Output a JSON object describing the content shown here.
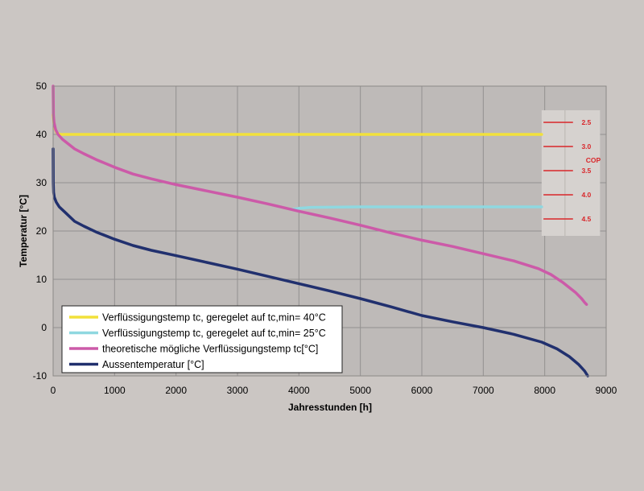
{
  "chart_data": {
    "type": "line",
    "xlabel": "Jahresstunden [h]",
    "ylabel": "Temperatur [°C]",
    "xlim": [
      0,
      9000
    ],
    "ylim": [
      -10,
      50
    ],
    "x_ticks": [
      0,
      1000,
      2000,
      3000,
      4000,
      5000,
      6000,
      7000,
      8000,
      9000
    ],
    "y_ticks": [
      -10,
      0,
      10,
      20,
      30,
      40,
      50
    ],
    "grid": true,
    "legend_position": "bottom-left",
    "series": [
      {
        "name": "Verflüssigungstemp tc, geregelet auf tc,min= 40°C",
        "color": "#f2e13a",
        "x": [
          0,
          20,
          60,
          120,
          300,
          1000,
          2000,
          4000,
          6000,
          7950
        ],
        "y": [
          44,
          41.5,
          40.3,
          40,
          40,
          40,
          40,
          40,
          40,
          40
        ]
      },
      {
        "name": "Verflüssigungstemp tc, geregelet auf tc,min= 25°C",
        "color": "#8fd8e0",
        "x": [
          3900,
          4000,
          4200,
          5000,
          6000,
          7000,
          7950
        ],
        "y": [
          24.5,
          24.7,
          24.9,
          25,
          25,
          25,
          25
        ]
      },
      {
        "name": "theoretische mögliche Verflüssigungstemp tc[°C]",
        "color": "#cc5aa8",
        "x": [
          0,
          5,
          15,
          40,
          80,
          150,
          250,
          350,
          500,
          700,
          1000,
          1300,
          1600,
          2000,
          2500,
          3000,
          3500,
          4000,
          4500,
          5000,
          5500,
          6000,
          6500,
          7000,
          7500,
          7900,
          8100,
          8300,
          8500,
          8600,
          8650,
          8680
        ],
        "y": [
          50,
          44,
          42.5,
          41,
          40,
          39,
          38,
          37,
          36,
          34.8,
          33.2,
          31.8,
          30.8,
          29.6,
          28.3,
          27,
          25.6,
          24.1,
          22.7,
          21.2,
          19.6,
          18.1,
          16.8,
          15.3,
          13.8,
          12.2,
          11,
          9.3,
          7.3,
          6,
          5.2,
          4.8
        ]
      },
      {
        "name": "Aussentemperatur [°C]",
        "color": "#21306e",
        "x": [
          0,
          3,
          8,
          20,
          50,
          100,
          200,
          350,
          500,
          700,
          1000,
          1300,
          1600,
          2000,
          2500,
          3000,
          3500,
          4000,
          4500,
          5000,
          5500,
          6000,
          6500,
          7000,
          7500,
          7950,
          8200,
          8400,
          8550,
          8650,
          8700
        ],
        "y": [
          37,
          30,
          28,
          27,
          26,
          25,
          23.8,
          22,
          21,
          19.8,
          18.3,
          17,
          16,
          14.9,
          13.5,
          12.1,
          10.6,
          9.1,
          7.6,
          6,
          4.3,
          2.5,
          1.2,
          0,
          -1.4,
          -3,
          -4.4,
          -6,
          -7.6,
          -9,
          -10
        ]
      }
    ],
    "cop_scale": {
      "label": "COP",
      "color": "#d9262a",
      "background": "#d6d2cf",
      "marks": [
        {
          "label": "2.5",
          "temp": 42.5
        },
        {
          "label": "3.0",
          "temp": 37.5
        },
        {
          "label": "3.5",
          "temp": 32.5
        },
        {
          "label": "4.0",
          "temp": 27.5
        },
        {
          "label": "4.5",
          "temp": 22.5
        }
      ]
    }
  }
}
